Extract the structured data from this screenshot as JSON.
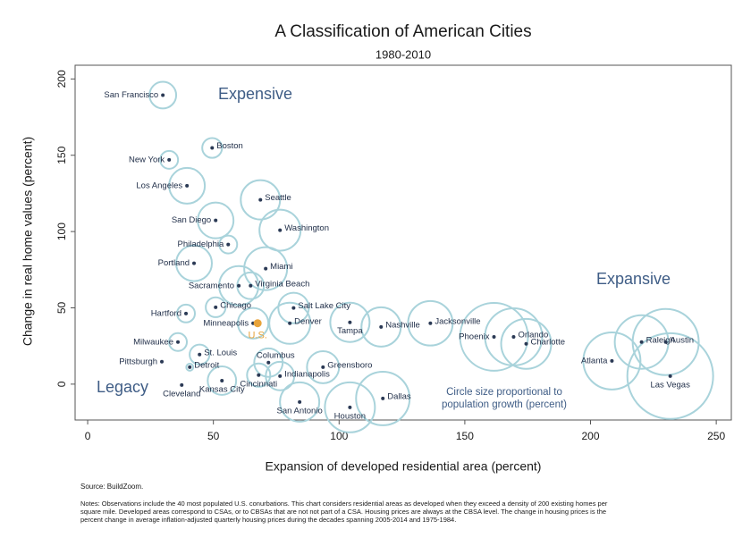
{
  "chart_data": {
    "type": "bubble",
    "title": "A Classification of American Cities",
    "subtitle": "1980-2010",
    "xlabel": "Expansion of developed residential area (percent)",
    "ylabel": "Change in real home values (percent)",
    "xlim": [
      -5,
      256
    ],
    "ylim": [
      -23.5,
      209
    ],
    "xticks": [
      0,
      50,
      100,
      150,
      200,
      250
    ],
    "yticks": [
      0,
      50,
      100,
      150,
      200
    ],
    "grid": false,
    "dot_color": "#2b3a55",
    "bubble_color": "#a9d3db",
    "annotations": {
      "expensive": "Expensive",
      "expansive": "Expansive",
      "legacy": "Legacy",
      "size_note": [
        "Circle size proportional to",
        "population growth (percent)"
      ]
    },
    "points": [
      {
        "label": "San Francisco",
        "x": 29.9,
        "y": 189.4,
        "size": 29
      },
      {
        "label": "Boston",
        "x": 49.5,
        "y": 154.8,
        "size": 16
      },
      {
        "label": "New York",
        "x": 32.4,
        "y": 147,
        "size": 13
      },
      {
        "label": "Los Angeles",
        "x": 39.5,
        "y": 130,
        "size": 52
      },
      {
        "label": "Seattle",
        "x": 68.7,
        "y": 120.8,
        "size": 63
      },
      {
        "label": "San Diego",
        "x": 50.9,
        "y": 107.3,
        "size": 52
      },
      {
        "label": "Washington",
        "x": 76.5,
        "y": 100.9,
        "size": 69
      },
      {
        "label": "Philadelphia",
        "x": 55.9,
        "y": 91.5,
        "size": 13
      },
      {
        "label": "Portland",
        "x": 42.3,
        "y": 79.2,
        "size": 52
      },
      {
        "label": "Miami",
        "x": 70.8,
        "y": 75.7,
        "size": 75
      },
      {
        "label": "Sacramento",
        "x": 60.1,
        "y": 64.5,
        "size": 63
      },
      {
        "label": "Virginia Beach",
        "x": 64.8,
        "y": 64.5,
        "size": 29
      },
      {
        "label": "Chicago",
        "x": 50.9,
        "y": 50.4,
        "size": 16
      },
      {
        "label": "Salt Lake City",
        "x": 81.9,
        "y": 49.9,
        "size": 38
      },
      {
        "label": "Hartford",
        "x": 39.1,
        "y": 46.3,
        "size": 13
      },
      {
        "label": "Minneapolis",
        "x": 65.8,
        "y": 39.9,
        "size": 38
      },
      {
        "label": "Denver",
        "x": 80.4,
        "y": 39.9,
        "size": 69
      },
      {
        "label": "Tampa",
        "x": 104.3,
        "y": 40.5,
        "size": 63
      },
      {
        "label": "Nashville",
        "x": 116.7,
        "y": 37.5,
        "size": 63
      },
      {
        "label": "Jacksonville",
        "x": 136.3,
        "y": 39.9,
        "size": 81
      },
      {
        "label": "Phoenix",
        "x": 161.6,
        "y": 31,
        "size": 188
      },
      {
        "label": "Orlando",
        "x": 169.4,
        "y": 31,
        "size": 133
      },
      {
        "label": "Charlotte",
        "x": 174.4,
        "y": 26.4,
        "size": 102
      },
      {
        "label": "Raleigh",
        "x": 220.3,
        "y": 27.6,
        "size": 117
      },
      {
        "label": "Austin",
        "x": 229.9,
        "y": 27.6,
        "size": 178
      },
      {
        "label": "Atlanta",
        "x": 208.5,
        "y": 15.2,
        "size": 133
      },
      {
        "label": "Las Vegas",
        "x": 231.7,
        "y": 5.3,
        "size": 300
      },
      {
        "label": "Milwaukee",
        "x": 35.9,
        "y": 27.6,
        "size": 13
      },
      {
        "label": "St. Louis",
        "x": 44.5,
        "y": 19.4,
        "size": 16
      },
      {
        "label": "Pittsburgh",
        "x": 29.5,
        "y": 14.7,
        "size": 0
      },
      {
        "label": "Detroit",
        "x": 40.6,
        "y": 11.1,
        "size": 2
      },
      {
        "label": "Columbus",
        "x": 71.9,
        "y": 14.1,
        "size": 33
      },
      {
        "label": "Greensboro",
        "x": 93.6,
        "y": 11.1,
        "size": 42
      },
      {
        "label": "Cincinnati",
        "x": 68,
        "y": 5.9,
        "size": 22
      },
      {
        "label": "Indianapolis",
        "x": 76.5,
        "y": 5.3,
        "size": 33
      },
      {
        "label": "Kansas City",
        "x": 53.4,
        "y": 2.3,
        "size": 33
      },
      {
        "label": "Cleveland",
        "x": 37.4,
        "y": -0.6,
        "size": 0
      },
      {
        "label": "San Antonio",
        "x": 84.3,
        "y": -11.7,
        "size": 63
      },
      {
        "label": "Houston",
        "x": 104.3,
        "y": -15.2,
        "size": 102
      },
      {
        "label": "Dallas",
        "x": 117.4,
        "y": -9.4,
        "size": 117
      }
    ],
    "us": {
      "label": "U.S.",
      "x": 67.6,
      "y": 39.9,
      "color": "#e8a33a"
    }
  },
  "source": "Source: BuildZoom.",
  "notes": [
    "Notes: Observations include the 40 most populated U.S. conurbations. This chart considers residential areas as developed when they exceed a density of 200 existing homes per",
    "square mile. Developed areas correspond to CSAs, or to CBSAs that are not not part of a CSA. Housing prices are always at the CBSA level. The change in housing prices is the",
    "percent change in average inflation-adjusted quarterly housing prices during the decades spanning 2005-2014 and 1975-1984."
  ]
}
